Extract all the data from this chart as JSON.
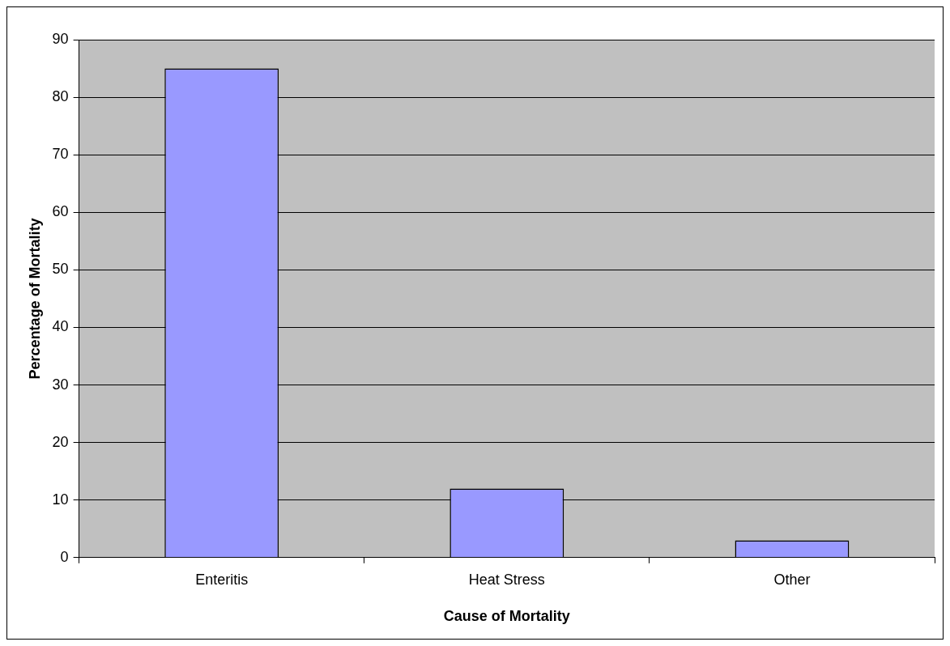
{
  "chart_data": {
    "type": "bar",
    "xlabel": "Cause of Mortality",
    "ylabel": "Percentage of Mortality",
    "categories": [
      "Enteritis",
      "Heat Stress",
      "Other"
    ],
    "values": [
      85,
      12,
      3
    ],
    "color": "#9999ff",
    "ylim": [
      0,
      90
    ],
    "yticks": [
      0,
      10,
      20,
      30,
      40,
      50,
      60,
      70,
      80,
      90
    ],
    "grid": "y",
    "legend": false
  }
}
